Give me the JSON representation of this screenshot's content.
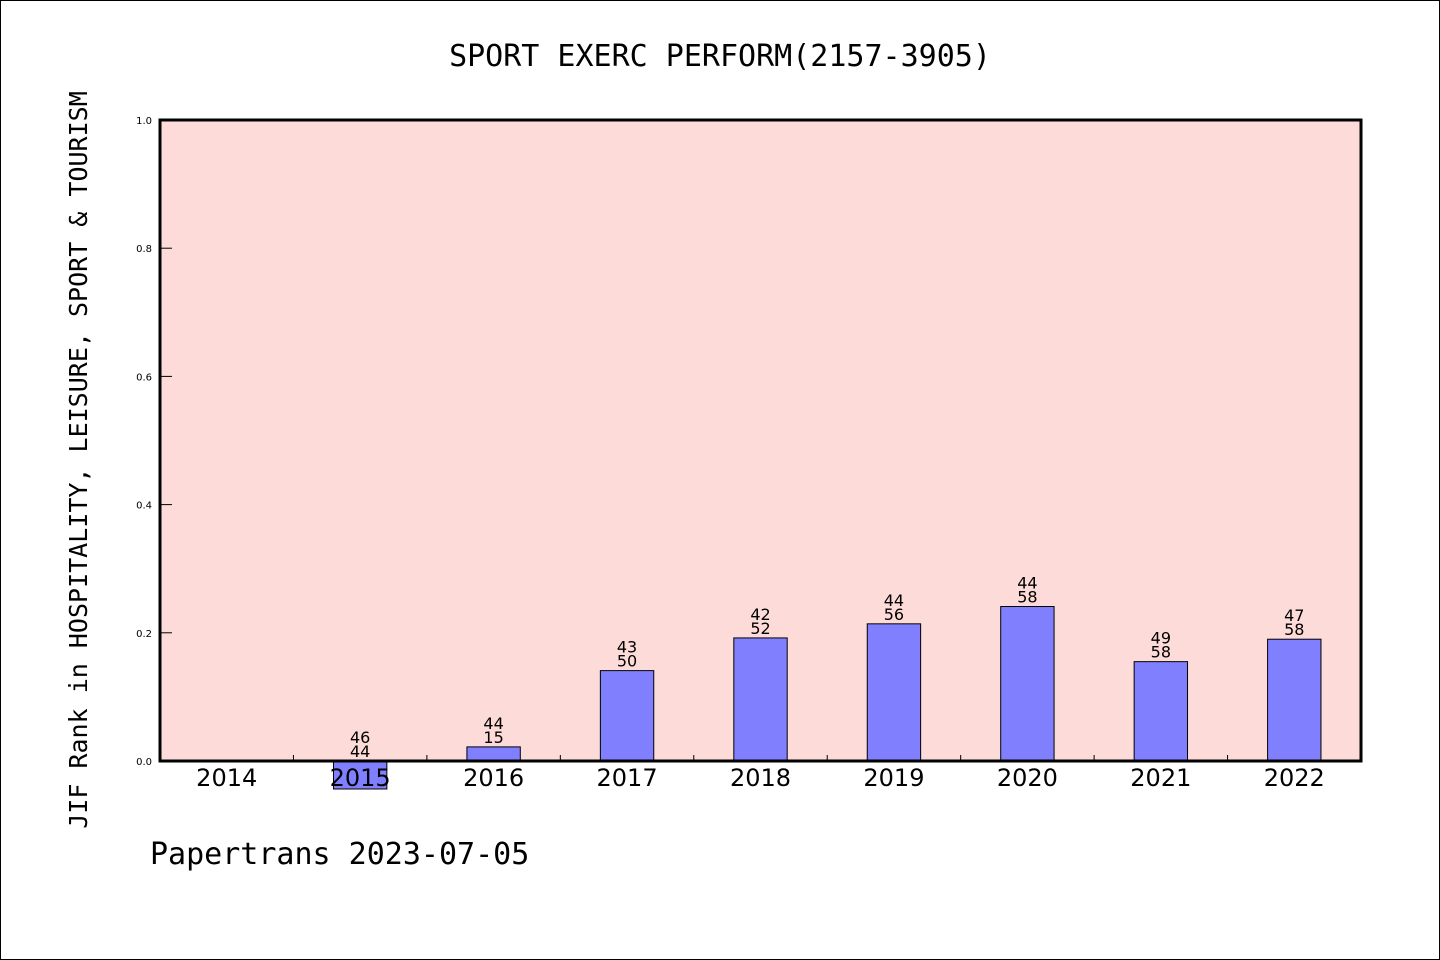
{
  "chart_data": {
    "type": "bar",
    "title": "SPORT EXERC PERFORM(2157-3905)",
    "xlabel": "",
    "ylabel": "JIF Rank in HOSPITALITY, LEISURE, SPORT & TOURISM",
    "ylim": [
      0,
      1.0
    ],
    "yticks": [
      "0.0",
      "0.2",
      "0.4",
      "0.6",
      "0.8",
      "1.0"
    ],
    "categories": [
      "2014",
      "2015",
      "2016",
      "2017",
      "2018",
      "2019",
      "2020",
      "2021",
      "2022"
    ],
    "values": [
      null,
      0.0,
      0.022,
      0.141,
      0.192,
      0.214,
      0.241,
      0.155,
      0.19
    ],
    "labels_top": [
      "",
      "46",
      "44",
      "43",
      "42",
      "44",
      "44",
      "49",
      "47"
    ],
    "labels_bottom": [
      "",
      "44",
      "15",
      "50",
      "52",
      "56",
      "58",
      "58",
      "58"
    ],
    "highlight_category": "2015",
    "colors": {
      "plot_background": "#fddbd8",
      "bar": "#8080ff",
      "bar_edge": "#000000"
    },
    "grid": false,
    "legend": "none"
  },
  "footer": {
    "text": "Papertrans 2023-07-05"
  }
}
